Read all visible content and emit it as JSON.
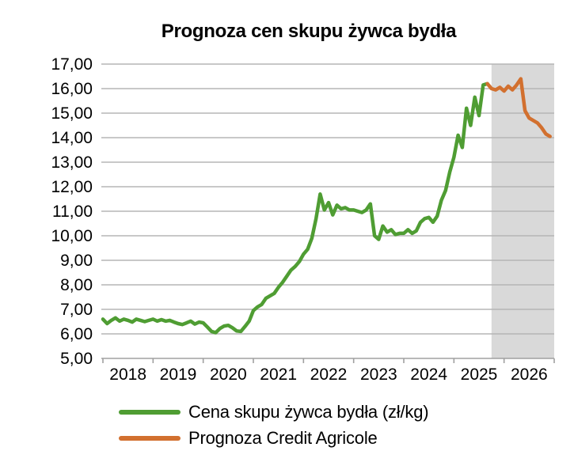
{
  "title": "Prognoza cen skupu żywca bydła",
  "legend": [
    {
      "id": "cena",
      "label": "Cena skupu żywca bydła (zł/kg)",
      "color": "#4f9d33"
    },
    {
      "id": "prognoza",
      "label": "Prognoza Credit Agricole",
      "color": "#d2702f"
    }
  ],
  "chart_data": {
    "type": "line",
    "title": "Prognoza cen skupu żywca bydła",
    "xlabel": "",
    "ylabel": "",
    "ylim": [
      5,
      17
    ],
    "ytick_step": 1,
    "ytick_labels": [
      "17,00",
      "16,00",
      "15,00",
      "14,00",
      "13,00",
      "12,00",
      "11,00",
      "10,00",
      "9,00",
      "8,00",
      "7,00",
      "6,00",
      "5,00"
    ],
    "x_axis": {
      "start_year": 2018,
      "end_year": 2027,
      "tick_labels": [
        "2018",
        "2019",
        "2020",
        "2021",
        "2022",
        "2023",
        "2024",
        "2025",
        "2026"
      ]
    },
    "grid": true,
    "legend_position": "bottom",
    "forecast_band": {
      "x_start": 2025.75,
      "x_end": 2027.0,
      "color": "#d9d9d9"
    },
    "colors": {
      "gridline": "#b5b5b5",
      "axis": "#a0a0a0",
      "text": "#000000"
    },
    "series": [
      {
        "name": "Cena skupu żywca bydła (zł/kg)",
        "color": "#4f9d33",
        "start_year": 2018,
        "start_month": 1,
        "frequency": "monthly",
        "values": [
          6.6,
          6.42,
          6.55,
          6.65,
          6.52,
          6.6,
          6.55,
          6.48,
          6.6,
          6.55,
          6.5,
          6.55,
          6.6,
          6.52,
          6.58,
          6.52,
          6.55,
          6.48,
          6.42,
          6.38,
          6.45,
          6.52,
          6.4,
          6.48,
          6.45,
          6.28,
          6.1,
          6.05,
          6.22,
          6.32,
          6.35,
          6.25,
          6.12,
          6.1,
          6.3,
          6.52,
          6.95,
          7.1,
          7.2,
          7.45,
          7.55,
          7.65,
          7.9,
          8.1,
          8.35,
          8.6,
          8.75,
          8.95,
          9.25,
          9.45,
          9.9,
          10.7,
          11.7,
          11.05,
          11.35,
          10.85,
          11.25,
          11.1,
          11.15,
          11.05,
          11.05,
          11.0,
          10.95,
          11.05,
          11.3,
          10.0,
          9.85,
          10.4,
          10.15,
          10.25,
          10.05,
          10.1,
          10.1,
          10.25,
          10.1,
          10.2,
          10.55,
          10.7,
          10.75,
          10.55,
          10.8,
          11.45,
          11.85,
          12.6,
          13.2,
          14.1,
          13.6,
          15.2,
          14.5,
          15.65,
          14.9,
          16.15,
          16.2
        ]
      },
      {
        "name": "Prognoza Credit Agricole",
        "color": "#d2702f",
        "start_year": 2025,
        "start_month": 9,
        "frequency": "monthly",
        "values": [
          16.2,
          16.0,
          15.95,
          16.05,
          15.9,
          16.1,
          15.95,
          16.15,
          16.4,
          15.1,
          14.8,
          14.7,
          14.6,
          14.4,
          14.15,
          14.05
        ]
      }
    ]
  }
}
